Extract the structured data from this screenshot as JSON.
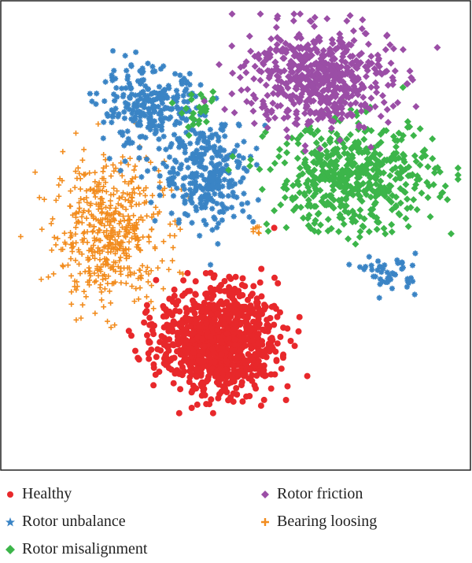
{
  "chart_data": {
    "type": "scatter",
    "title": "",
    "xlabel": "",
    "ylabel": "",
    "axes_ticks": "none",
    "grid": false,
    "legend_position": "bottom",
    "xlim": [
      0,
      100
    ],
    "ylim": [
      0,
      100
    ],
    "series": [
      {
        "name": "Healthy",
        "marker": "circle",
        "color": "#e8282b",
        "clusters": [
          {
            "center": [
              46,
              27
            ],
            "spread": [
              6.5,
              5.8
            ],
            "count": 1000
          }
        ]
      },
      {
        "name": "Rotor unbalance",
        "marker": "star",
        "color": "#3a84c5",
        "clusters": [
          {
            "center": [
              31,
              78
            ],
            "spread": [
              5.5,
              4.5
            ],
            "count": 260
          },
          {
            "center": [
              44,
              64
            ],
            "spread": [
              5.0,
              6.0
            ],
            "count": 300
          },
          {
            "center": [
              84,
              42
            ],
            "spread": [
              3.0,
              2.0
            ],
            "count": 45
          }
        ]
      },
      {
        "name": "Rotor misalignment",
        "marker": "diamond",
        "color": "#3cb54a",
        "clusters": [
          {
            "center": [
              76,
              63
            ],
            "spread": [
              9.0,
              6.0
            ],
            "count": 520
          },
          {
            "center": [
              42,
              77
            ],
            "spread": [
              2.0,
              2.0
            ],
            "count": 25
          }
        ]
      },
      {
        "name": "Rotor friction",
        "marker": "diamond",
        "color": "#9b4ea6",
        "clusters": [
          {
            "center": [
              68,
              85
            ],
            "spread": [
              8.0,
              5.5
            ],
            "count": 560
          }
        ]
      },
      {
        "name": "Bearing loosing",
        "marker": "plus",
        "color": "#f28c1e",
        "clusters": [
          {
            "center": [
              22,
              51
            ],
            "spread": [
              6.0,
              8.0
            ],
            "count": 520
          },
          {
            "center": [
              55,
              52
            ],
            "spread": [
              1.0,
              1.0
            ],
            "count": 8
          }
        ]
      }
    ]
  },
  "legend": {
    "items": [
      {
        "label": "Healthy",
        "color": "#e8282b",
        "marker": "circle"
      },
      {
        "label": "Rotor unbalance",
        "color": "#3a84c5",
        "marker": "star"
      },
      {
        "label": "Rotor misalignment",
        "color": "#3cb54a",
        "marker": "diamond"
      },
      {
        "label": "Rotor friction",
        "color": "#9b4ea6",
        "marker": "diamond"
      },
      {
        "label": "Bearing loosing",
        "color": "#f28c1e",
        "marker": "plus"
      }
    ]
  }
}
